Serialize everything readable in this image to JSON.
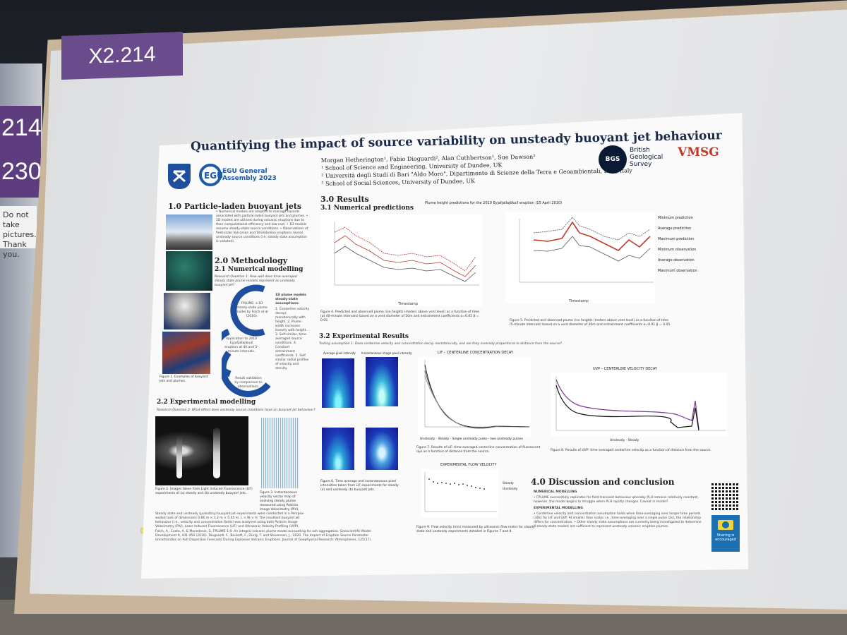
{
  "booth_tag": "X2.214",
  "left_sign": {
    "lines": [
      "214",
      "230"
    ]
  },
  "left_note": "Do not take pictures. Thank you.",
  "poster": {
    "title": "Quantifying the impact of source variability on unsteady buoyant jet behaviour",
    "authors": "Morgan Hetherington¹, Fabio Dioguardi², Alan Cuthbertson¹, Sue Dawson³",
    "affil1": "¹ School of Science and Engineering, University of Dundee, UK",
    "affil2": "² Università degli Studi di Bari \"Aldo Moro\", Dipartimento di Scienze della Terra e Geoambientali, Bari, Italy",
    "affil3": "³ School of Social Sciences, University of Dundee, UK",
    "egu": "EGU General Assembly 2023",
    "bgs": "British Geological Survey",
    "bgs_short": "BGS",
    "vmsg": "VMSG",
    "s1": "1.0 Particle-laden buoyant jets",
    "s1_bullets": "• Numerical models are adopted to manage hazards associated with particle-laden buoyant jets and plumes. • 1D models are utilised during volcanic eruptions due to their computational efficiency and low cost. • 1D models assume steady-state source conditions. • Observations of field-scale Vulcanian and Strombolian eruptions reveal unsteady source conditions (i.e. steady state assumption is violated).",
    "fig1": "Figure 1. Examples of buoyant jets and plumes.",
    "s2": "2.0 Methodology",
    "s21": "2.1 Numerical modelling",
    "rq1": "Research Question 1: How well does time-averaged steady state plume models represent an unsteady buoyant jet?",
    "cycle": [
      "FPLUME: a 1D steady-state plume model by Folch et al (2016).",
      "Application to 2010 Eyjafjallajökull eruption at 40 and 5-minute intervals.",
      "Result validation by comparison to observations."
    ],
    "assumptions_title": "1D plume models steady-state assumptions:",
    "assumptions": "1. Centerline velocity decays monotonically with height. 2. Plume width increases linearly with height. 3. Self-similar, time-averaged source conditions. 4. Constant entrainment coefficients. 5. Self similar radial profiles of velocity and density.",
    "s22": "2.2 Experimental modelling",
    "rq2": "Research Question 2: What effect does unsteady source conditions have on buoyant jet behaviour?",
    "fig2": "Figure 2. Images taken from Light Induced Fluorescence (LIF) experiments of (a) steady and (b) unsteady buoyant jets.",
    "fig3": "Figure 3. Instantaneous velocity vector map of evolving steady plume measured using Particle Image Velocimetry (PIV).",
    "method_text": "Steady state and unsteady (pulsatory) buoyant jet experiments were conducted in a Perspex-walled tank of dimensions 0.66 m × 1.2 m × 0.45 m. L × W × H. The resultant buoyant jet behaviour (i.e., velocity and concentration fields) was analysed using both Particle Image Velocimetry (PIV), Laser Induced Fluorescence (LIF) and Ultrasonic Velocity Profiling (UVP).",
    "refs": "Folch, A., Costa, A. & Macedonio, G. FPLUME-1.0: An integral volcanic plume model accounting for ash aggregation. Geoscientific Model Development 9, 431-450 (2016). Dioguardi, F., Beckett, F., Dürig, T. and Stevenson, J., 2020. The Impact of Eruption Source Parameter Uncertainties on Ash Dispersion Forecasts During Explosive Volcanic Eruptions. Journal of Geophysical Research: Atmospheres, 125(17).",
    "s3": "3.0 Results",
    "s31": "3.1 Numerical predictions",
    "chart_title": "Plume height predictions for the 2010 Eyjafjallajökull eruption (15 April 2010)",
    "fig4": "Figure 4. Predicted and observed plume rise heights (meters above vent level) as a function of time (at 40-minute intervals) based on a vent diameter of 20m and entrainment coefficients α=0.05 β = 0.05.",
    "fig5": "Figure 5. Predicted and observed plume rise heights (meters above vent level) as a function of time (5-minute intervals) based on a vent diameter of 20m and entrainment coefficients α=0.01 β = 0.05.",
    "legend": [
      "Minimum prediction",
      "Average prediction",
      "Maximum prediction",
      "Minimum observation",
      "Average observation",
      "Maximum observation"
    ],
    "timestamp": "Timestamp",
    "s32": "3.2 Experimental Results",
    "testing": "Testing assumption 1: Does centerline velocity and concentration decay monotonically, and are they inversely proportional to distance from the source?",
    "lif_title": "LIF – CENTERLINE CONCENTRATION DECAY",
    "uvp_title": "UVP – CENTERLINE VELOCITY DECAY",
    "lif_legend": [
      "Unsteady",
      "Steady",
      "Single unsteady pulse",
      "two unsteady pulses"
    ],
    "uvp_legend": [
      "Unsteady",
      "Steady"
    ],
    "avg_label": "Average pixel intensity",
    "inst_label": "Instantaneous image pixel intensity",
    "fig6": "Figure 6. Time average and instantaneous pixel intensities taken from LIF experiments for steady (a) and unsteady (b) buoyant jets.",
    "fig7": "Figure 7. Results of LIF: time-averaged centerline concentration of fluorescent dye as a function of distance from the source.",
    "fig8": "Figure 8. Results of UVP: time averaged centerline velocity as a function of distance from the source.",
    "flow_title": "EXPERIMENTAL FLOW VELOCITY",
    "flow_legend": [
      "Steady",
      "Unsteady"
    ],
    "fig9": "Figure 9. Flow velocity (m/s) measured by ultrasonic flow meter for steady-state and unsteady experiments detailed in Figures 7 and 8.",
    "s4": "4.0 Discussion and conclusion",
    "num_model": "NUMERICAL MODELLING",
    "num_text": "• FPLUME successfully replicates far field transient behaviour whereby PLH remains relatively constant; however, the model begins to struggle when PLH rapidly changes. Caveat in model?",
    "exp_model": "EXPERIMENTAL MODELLING",
    "exp_text": "• Centerline velocity and concentration assumption holds when time-averaging over longer time periods (30s) for LIF and UVP. At smaller time scales i.e., time-averaging over a single pulse (2s), the relationship differs for concentration. • Other steady state assumptions are currently being investigated to determine if steady-state models are sufficient to represent unsteady volcanic eruption plumes.",
    "sharing": "Sharing is encouraged"
  },
  "colors": {
    "tag": "#6a4b8c",
    "egu_blue": "#1d5aa6",
    "dundee_blue": "#1f4e9e",
    "vmsg_red": "#c0392b",
    "plot_red": "#c0392b"
  }
}
